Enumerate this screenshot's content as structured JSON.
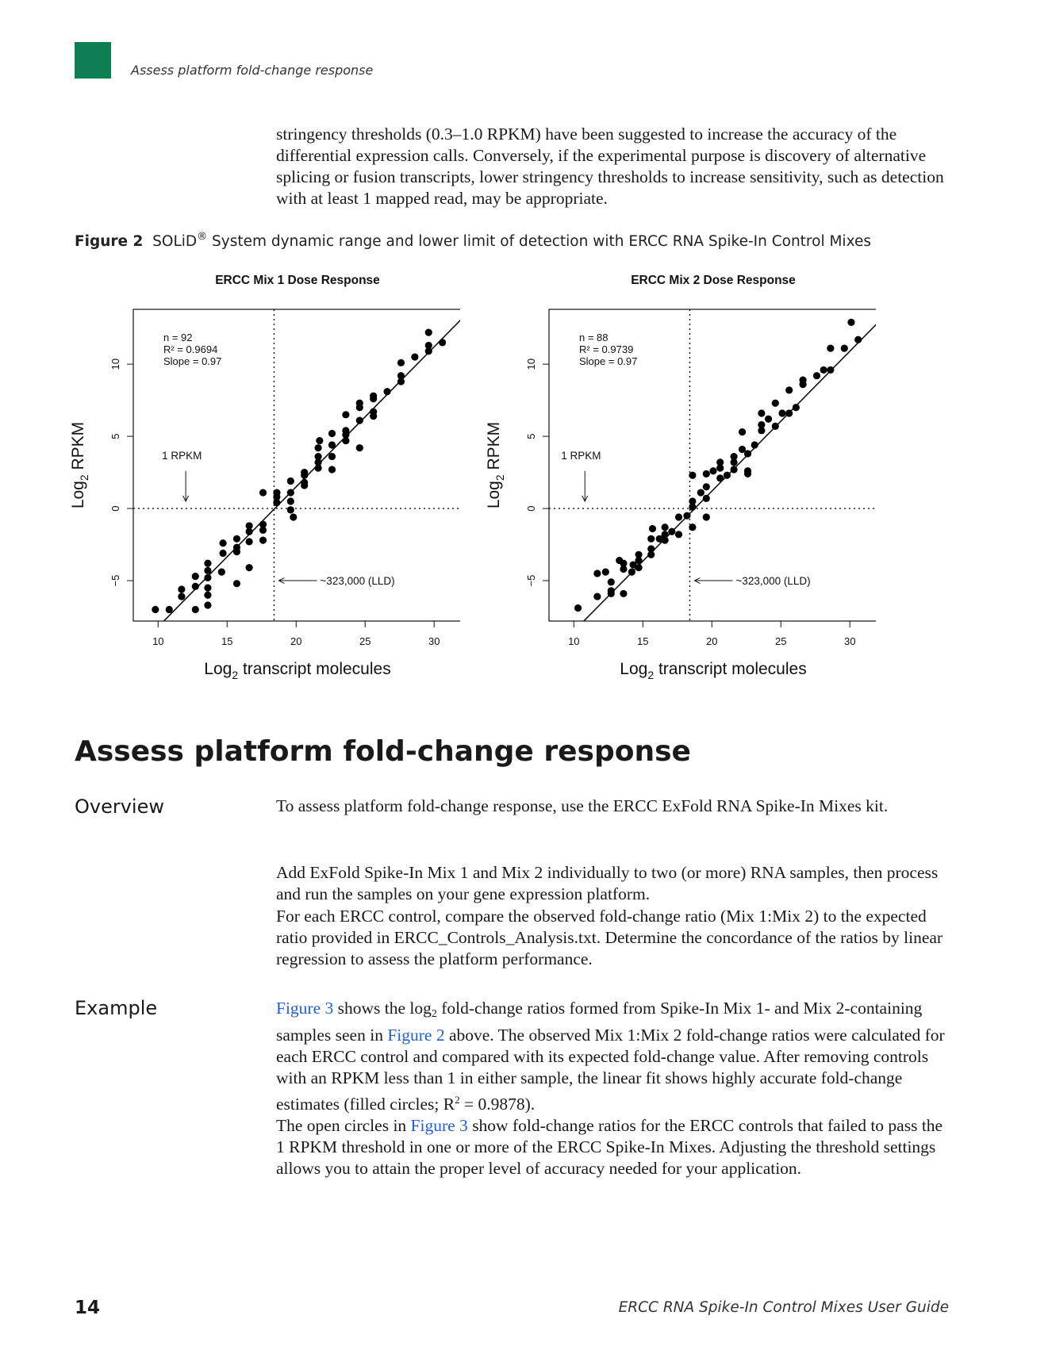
{
  "header": {
    "title": "Assess platform fold-change response"
  },
  "intro_paragraph": "stringency thresholds (0.3–1.0 RPKM) have been suggested to increase the accuracy of the differential expression calls.  Conversely, if the experimental purpose is discovery of alternative splicing or fusion transcripts, lower stringency thresholds to increase sensitivity, such as detection with at least 1 mapped read, may be appropriate.",
  "figure": {
    "label": "Figure 2",
    "caption_pre": "SOLiD",
    "caption_reg": "®",
    "caption_post": " System dynamic range and lower limit of detection with ERCC RNA Spike-In Control Mixes"
  },
  "colors": {
    "brand_green": "#0e7f53",
    "link_blue": "#1f5fd8"
  },
  "chart_data": [
    {
      "type": "scatter",
      "title": "ERCC Mix 1 Dose Response",
      "xlabel_main": "Log",
      "xlabel_sub": "2",
      "xlabel_rest": " transcript molecules",
      "ylabel_main": "Log",
      "ylabel_sub": "2",
      "ylabel_rest": " RPKM",
      "xlim": [
        8.2,
        32
      ],
      "ylim": [
        -7.8,
        13.8
      ],
      "xticks": [
        10,
        15,
        20,
        25,
        30
      ],
      "yticks": [
        -5,
        0,
        5,
        10
      ],
      "stats": [
        "n = 92",
        "R² = 0.9694",
        "Slope = 0.97"
      ],
      "fit": {
        "slope": 0.97,
        "intercept": -17.9
      },
      "vline_x": 18.4,
      "hline_y": 0,
      "rpkm_label": "1 RPKM",
      "rpkm_arrow_x": 12.0,
      "lld_label": "~323,000 (LLD)",
      "points": [
        [
          9.8,
          -7
        ],
        [
          10.8,
          -7
        ],
        [
          11.7,
          -6.1
        ],
        [
          11.7,
          -5.6
        ],
        [
          12.7,
          -4.7
        ],
        [
          12.7,
          -5.4
        ],
        [
          12.7,
          -7
        ],
        [
          13.6,
          -3.8
        ],
        [
          13.6,
          -4.3
        ],
        [
          13.6,
          -4.8
        ],
        [
          13.6,
          -5.5
        ],
        [
          13.6,
          -6
        ],
        [
          13.6,
          -6.7
        ],
        [
          14.7,
          -2.4
        ],
        [
          14.7,
          -3.1
        ],
        [
          14.6,
          -4.4
        ],
        [
          15.7,
          -2.1
        ],
        [
          15.7,
          -2.7
        ],
        [
          15.7,
          -3
        ],
        [
          15.7,
          -5.2
        ],
        [
          16.6,
          -1.2
        ],
        [
          16.6,
          -1.6
        ],
        [
          16.6,
          -2.3
        ],
        [
          16.6,
          -4.1
        ],
        [
          17.6,
          -1.1
        ],
        [
          17.6,
          -1.5
        ],
        [
          17.6,
          -2.2
        ],
        [
          17.6,
          1.1
        ],
        [
          18.6,
          0.4
        ],
        [
          18.6,
          0.8
        ],
        [
          18.6,
          1.1
        ],
        [
          19.6,
          -0.1
        ],
        [
          19.6,
          0.5
        ],
        [
          19.6,
          1.1
        ],
        [
          19.6,
          1.9
        ],
        [
          19.8,
          -0.6
        ],
        [
          20.6,
          1.6
        ],
        [
          20.6,
          2.3
        ],
        [
          20.6,
          1.8
        ],
        [
          20.6,
          2.5
        ],
        [
          21.6,
          2.8
        ],
        [
          21.6,
          3.2
        ],
        [
          21.6,
          3.6
        ],
        [
          21.6,
          4.2
        ],
        [
          21.7,
          4.7
        ],
        [
          22.6,
          2.7
        ],
        [
          22.6,
          3.6
        ],
        [
          22.6,
          4.4
        ],
        [
          22.6,
          5.2
        ],
        [
          23.6,
          4.7
        ],
        [
          23.6,
          5.1
        ],
        [
          23.6,
          6.5
        ],
        [
          23.6,
          5.4
        ],
        [
          24.6,
          4.2
        ],
        [
          24.6,
          6.1
        ],
        [
          24.6,
          7
        ],
        [
          24.6,
          7.3
        ],
        [
          25.6,
          6.4
        ],
        [
          25.6,
          6.7
        ],
        [
          25.6,
          7.6
        ],
        [
          25.6,
          7.8
        ],
        [
          26.6,
          8.1
        ],
        [
          27.6,
          8.8
        ],
        [
          27.6,
          9.2
        ],
        [
          27.6,
          10.1
        ],
        [
          28.6,
          10.5
        ],
        [
          29.6,
          10.9
        ],
        [
          29.6,
          11.3
        ],
        [
          29.6,
          12.2
        ],
        [
          30.6,
          11.5
        ]
      ]
    },
    {
      "type": "scatter",
      "title": "ERCC Mix 2 Dose Response",
      "xlabel_main": "Log",
      "xlabel_sub": "2",
      "xlabel_rest": " transcript molecules",
      "ylabel_main": "Log",
      "ylabel_sub": "2",
      "ylabel_rest": " RPKM",
      "xlim": [
        8.2,
        32
      ],
      "ylim": [
        -7.8,
        13.8
      ],
      "xticks": [
        10,
        15,
        20,
        25,
        30
      ],
      "yticks": [
        -5,
        0,
        5,
        10
      ],
      "stats": [
        "n = 88",
        "R² = 0.9739",
        "Slope = 0.97"
      ],
      "fit": {
        "slope": 0.97,
        "intercept": -18.2
      },
      "vline_x": 18.4,
      "hline_y": 0,
      "rpkm_label": "1 RPKM",
      "rpkm_arrow_x": 10.8,
      "lld_label": "~323,000 (LLD)",
      "points": [
        [
          10.3,
          -6.9
        ],
        [
          11.7,
          -4.5
        ],
        [
          11.7,
          -6.1
        ],
        [
          12.3,
          -4.4
        ],
        [
          12.7,
          -5.1
        ],
        [
          12.7,
          -5.7
        ],
        [
          12.7,
          -5.9
        ],
        [
          13.3,
          -3.6
        ],
        [
          13.6,
          -3.8
        ],
        [
          13.6,
          -4.2
        ],
        [
          13.6,
          -5.9
        ],
        [
          14.3,
          -3.9
        ],
        [
          14.2,
          -4.4
        ],
        [
          14.7,
          -3.2
        ],
        [
          14.7,
          -3.6
        ],
        [
          14.7,
          -4.1
        ],
        [
          15.6,
          -2.1
        ],
        [
          15.6,
          -2.8
        ],
        [
          15.6,
          -3.2
        ],
        [
          15.7,
          -1.4
        ],
        [
          16.2,
          -2.1
        ],
        [
          16.6,
          -1.3
        ],
        [
          16.6,
          -1.8
        ],
        [
          16.6,
          -2.2
        ],
        [
          17.1,
          -1.6
        ],
        [
          17.6,
          -0.6
        ],
        [
          17.6,
          -1.8
        ],
        [
          18.2,
          -0.5
        ],
        [
          18.6,
          0.1
        ],
        [
          18.6,
          0.5
        ],
        [
          18.6,
          -1.3
        ],
        [
          18.6,
          2.3
        ],
        [
          19.2,
          1.1
        ],
        [
          19.6,
          1.5
        ],
        [
          19.6,
          2.4
        ],
        [
          19.6,
          -0.6
        ],
        [
          19.6,
          0.7
        ],
        [
          20.1,
          2.6
        ],
        [
          20.6,
          2.1
        ],
        [
          20.6,
          2.8
        ],
        [
          20.6,
          3.2
        ],
        [
          21.1,
          2.3
        ],
        [
          21.6,
          2.7
        ],
        [
          21.6,
          3.2
        ],
        [
          21.6,
          3.6
        ],
        [
          22.2,
          4.1
        ],
        [
          22.2,
          5.3
        ],
        [
          22.6,
          2.4
        ],
        [
          22.6,
          2.6
        ],
        [
          22.6,
          3.8
        ],
        [
          23.1,
          4.4
        ],
        [
          23.6,
          5.4
        ],
        [
          23.6,
          5.8
        ],
        [
          23.6,
          6.6
        ],
        [
          24.1,
          6.2
        ],
        [
          24.6,
          5.7
        ],
        [
          24.6,
          7.3
        ],
        [
          25.1,
          6.6
        ],
        [
          25.6,
          6.6
        ],
        [
          25.6,
          8.2
        ],
        [
          26.1,
          7
        ],
        [
          26.6,
          8.6
        ],
        [
          26.6,
          8.9
        ],
        [
          27.6,
          9.2
        ],
        [
          28.6,
          9.6
        ],
        [
          28.1,
          9.6
        ],
        [
          28.6,
          11.1
        ],
        [
          29.6,
          11.1
        ],
        [
          30.1,
          12.9
        ],
        [
          30.6,
          11.7
        ]
      ]
    }
  ],
  "section": {
    "heading": "Assess platform fold-change response"
  },
  "overview": {
    "label": "Overview",
    "p1": "To assess platform fold-change response, use the ERCC ExFold RNA Spike-In Mixes kit.",
    "p2": "Add ExFold Spike-In Mix 1 and Mix 2 individually to two (or more) RNA samples, then process and run the samples on your gene expression platform.",
    "p3": "For each ERCC control, compare the observed fold-change ratio (Mix 1:Mix 2) to the expected ratio provided in ERCC_Controls_Analysis.txt. Determine the concordance of the ratios by linear regression to assess the platform performance."
  },
  "example": {
    "label": "Example",
    "p1_link1": "Figure 3",
    "p1_a": " shows the log",
    "p1_sub": "2",
    "p1_b": " fold-change ratios formed from Spike-In Mix 1- and Mix 2-containing samples seen in ",
    "p1_link2": "Figure 2",
    "p1_c": " above. The observed Mix 1:Mix 2 fold-change ratios were calculated for each ERCC control and compared with its expected fold-change value. After removing controls with an RPKM less than 1 in either sample, the linear fit shows highly accurate fold-change estimates (filled circles; R",
    "p1_sup": "2",
    "p1_d": " = 0.9878).",
    "p2_a": "The open circles in ",
    "p2_link": "Figure 3",
    "p2_b": " show fold-change ratios for the ERCC controls that failed to pass the 1 RPKM threshold in one or more of the ERCC Spike-In Mixes. Adjusting the threshold settings allows you to attain the proper level of accuracy needed for your application."
  },
  "footer": {
    "page_number": "14",
    "guide_title": "ERCC RNA Spike-In Control Mixes User Guide"
  }
}
